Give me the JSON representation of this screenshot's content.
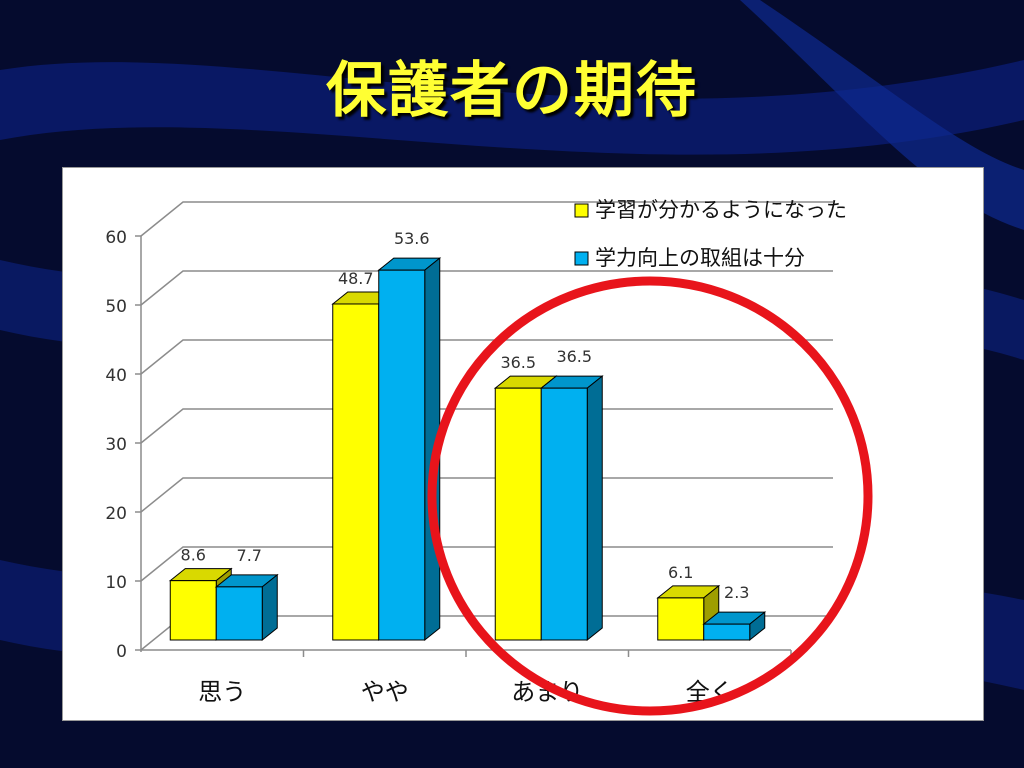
{
  "slide": {
    "title": "保護者の期待"
  },
  "colors": {
    "background": "#050b2e",
    "title": "#ffff33",
    "series1": "#ffff00",
    "series2": "#00b0f0",
    "highlight_circle": "#e8141b"
  },
  "chart_data": {
    "type": "bar",
    "title": "",
    "xlabel": "",
    "ylabel": "",
    "categories": [
      "思う",
      "やや",
      "あまり",
      "全く"
    ],
    "series": [
      {
        "name": "学習が分かるようになった",
        "values": [
          8.6,
          48.7,
          36.5,
          6.1
        ],
        "color": "#ffff00"
      },
      {
        "name": "学力向上の取組は十分",
        "values": [
          7.7,
          53.6,
          36.5,
          2.3
        ],
        "color": "#00b0f0"
      }
    ],
    "ylim": [
      0,
      60
    ],
    "yticks": [
      0,
      10,
      20,
      30,
      40,
      50,
      60
    ],
    "grid": true,
    "legend_position": "top-right",
    "style": "3d-clustered-column",
    "annotations": [
      {
        "type": "circle",
        "highlights_categories": [
          "あまり",
          "全く"
        ]
      }
    ]
  }
}
